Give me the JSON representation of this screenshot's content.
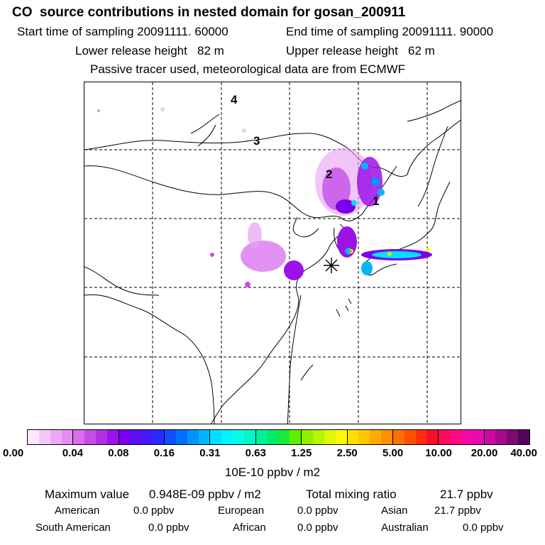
{
  "header": {
    "title": "CO  source contributions in nested domain for gosan_200911",
    "start_time": "Start time of sampling 20091111. 60000",
    "end_time": "End time of sampling 20091111. 90000",
    "lower_height": "Lower release height   82 m",
    "upper_height": "Upper release height   62 m",
    "tracer_note": "Passive tracer used, meteorological data are from ECMWF"
  },
  "map": {
    "markers": [
      "1",
      "2",
      "3",
      "4"
    ],
    "receptor_symbol": "*"
  },
  "colorbar": {
    "ticks": [
      "0.00",
      "0.04",
      "0.08",
      "0.16",
      "0.31",
      "0.63",
      "1.25",
      "2.50",
      "5.00",
      "10.00",
      "20.00",
      "40.00"
    ],
    "unit": "10E-10 ppbv / m2",
    "segments": [
      [
        "#fde8fd",
        "#f6c8fa",
        "#eea8f6",
        "#e48ef2"
      ],
      [
        "#d76cee",
        "#c64de9",
        "#b22fe6",
        "#9c12e8"
      ],
      [
        "#7a00ee",
        "#5e0cf6",
        "#4418fb",
        "#2a2cff"
      ],
      [
        "#1250ff",
        "#0070ff",
        "#0094ff",
        "#00b6ff"
      ],
      [
        "#00e0ff",
        "#00f4ff",
        "#00ffe6",
        "#00f8c6"
      ],
      [
        "#00f098",
        "#00ea6c",
        "#1ee83a",
        "#5cf000"
      ],
      [
        "#8ef000",
        "#b8f400",
        "#e0f800",
        "#fcfa00"
      ],
      [
        "#ffe000",
        "#ffc600",
        "#ffaa00",
        "#ff8e00"
      ],
      [
        "#ff7000",
        "#ff5000",
        "#ff2e10",
        "#ff0c2a"
      ],
      [
        "#ff0a5a",
        "#ff0a80",
        "#f608a4",
        "#e60ab2"
      ],
      [
        "#cc0aa2",
        "#a60a8a",
        "#7c0a72",
        "#52045a"
      ]
    ]
  },
  "summary": {
    "max_label": "Maximum value",
    "max_value": "0.948E-09 ppbv / m2",
    "total_label": "Total mixing ratio",
    "total_value": "21.7 ppbv",
    "regions": [
      {
        "name": "American",
        "value": "0.0 ppbv"
      },
      {
        "name": "European",
        "value": "0.0 ppbv"
      },
      {
        "name": "Asian",
        "value": "21.7 ppbv"
      },
      {
        "name": "South American",
        "value": "0.0 ppbv"
      },
      {
        "name": "African",
        "value": "0.0 ppbv"
      },
      {
        "name": "Australian",
        "value": "0.0 ppbv"
      }
    ]
  }
}
